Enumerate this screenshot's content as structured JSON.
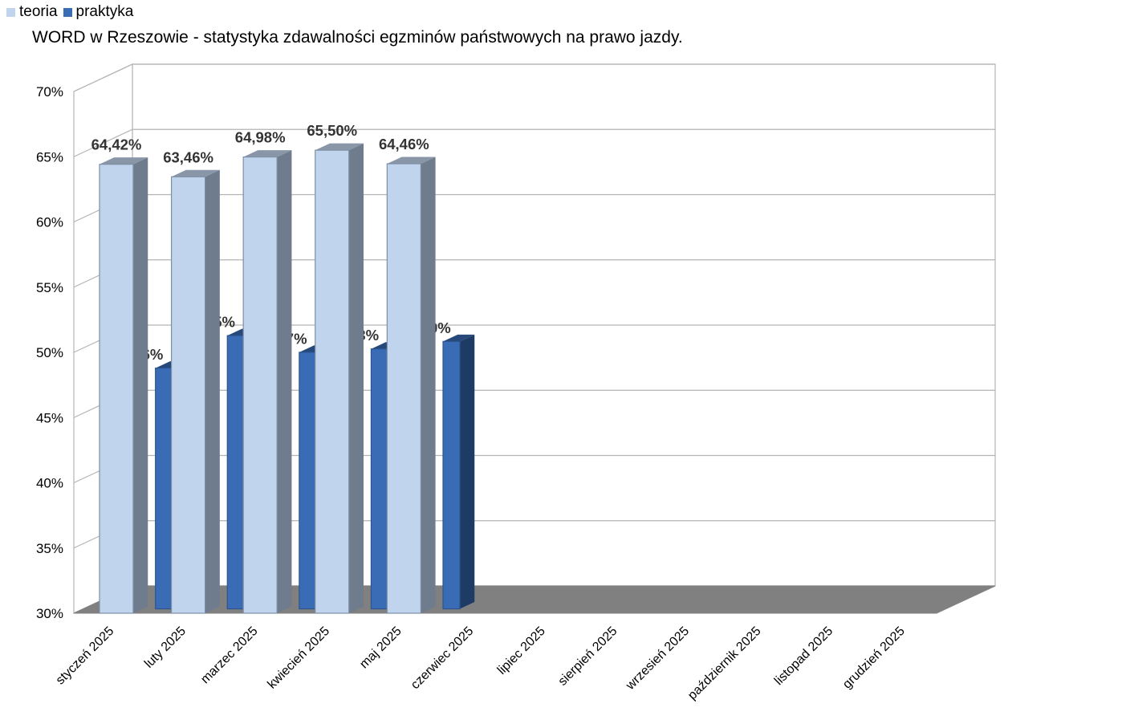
{
  "chart_data": {
    "type": "bar",
    "title": "WORD w Rzeszowie - statystyka zdawalności egzminów państwowych na prawo jazdy.",
    "categories": [
      "styczeń 2025",
      "luty 2025",
      "marzec 2025",
      "kwiecień 2025",
      "maj 2025",
      "czerwiec 2025",
      "lipiec 2025",
      "sierpień 2025",
      "wrzesień 2025",
      "październik 2025",
      "listopad 2025",
      "grudzień 2025"
    ],
    "series": [
      {
        "name": "teoria",
        "color": "#c0d4ee",
        "values": [
          64.42,
          63.46,
          64.98,
          65.5,
          64.46,
          null,
          null,
          null,
          null,
          null,
          null,
          null
        ],
        "labels": [
          "64,42%",
          "63,46%",
          "64,98%",
          "65,50%",
          "64,46%"
        ]
      },
      {
        "name": "praktyka",
        "color": "#3a6cb6",
        "values": [
          48.46,
          50.95,
          49.67,
          49.93,
          50.5,
          null,
          null,
          null,
          null,
          null,
          null,
          null
        ],
        "labels": [
          "48,46%",
          "50,95%",
          "49,67%",
          "49,93%",
          "50,50%"
        ]
      }
    ],
    "yticks": [
      "30%",
      "35%",
      "40%",
      "45%",
      "50%",
      "55%",
      "60%",
      "65%",
      "70%"
    ],
    "ylim": [
      30,
      70
    ],
    "ystep": 5,
    "three_d": true,
    "grid": true,
    "legend_position": "top-left"
  }
}
